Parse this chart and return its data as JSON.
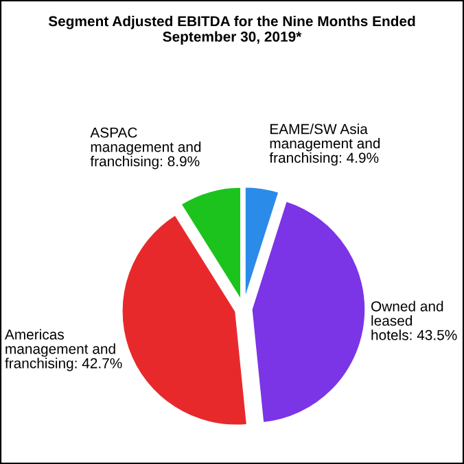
{
  "chart_data": {
    "type": "pie",
    "title": "Segment Adjusted EBITDA for the Nine Months Ended September 30, 2019*",
    "categories": [
      "EAME/SW Asia management and franchising",
      "Owned and leased hotels",
      "Americas management and franchising",
      "ASPAC management and franchising"
    ],
    "values": [
      4.9,
      43.5,
      42.7,
      8.9
    ],
    "value_labels": [
      "4.9%",
      "43.5%",
      "42.7%",
      "8.9%"
    ],
    "colors": [
      "#2b8be8",
      "#7b34e6",
      "#e8292b",
      "#1dc31d"
    ]
  }
}
